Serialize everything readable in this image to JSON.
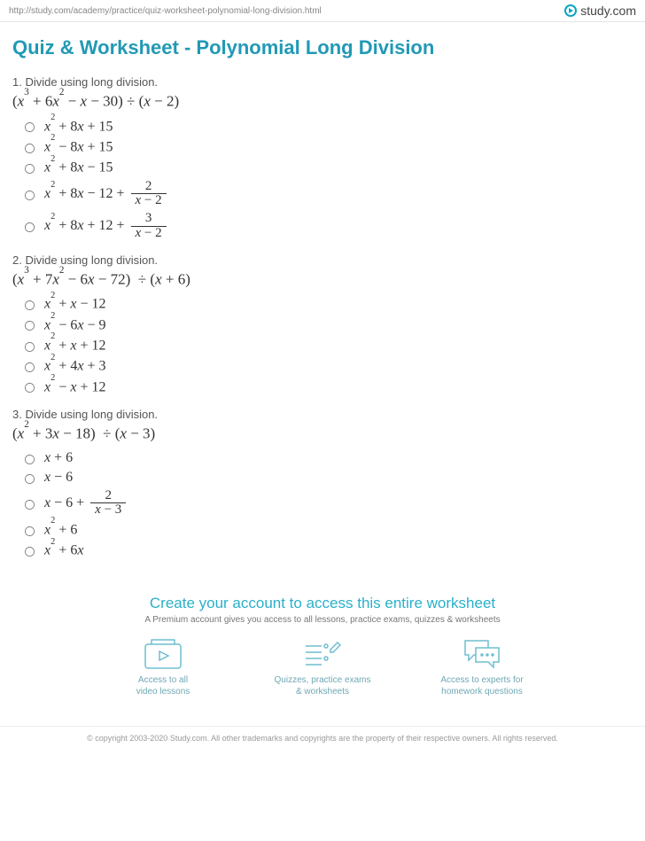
{
  "header": {
    "url": "http://study.com/academy/practice/quiz-worksheet-polynomial-long-division.html",
    "brand": "study.com"
  },
  "page": {
    "title": "Quiz & Worksheet - Polynomial Long Division"
  },
  "questions": [
    {
      "num": "1.",
      "prompt": "Divide using long division.",
      "expression_html": "(<span class='var'>x</span><sup>3</sup> + 6<span class='var'>x</span><sup>2</sup> − <span class='var'>x</span> − 30) ÷ (<span class='var'>x</span> − 2)",
      "options": [
        "<span class='var'>x</span><sup>2</sup> + 8<span class='var'>x</span> + 15",
        "<span class='var'>x</span><sup>2</sup> − 8<span class='var'>x</span> + 15",
        "<span class='var'>x</span><sup>2</sup> + 8<span class='var'>x</span> − 15",
        "<span class='var'>x</span><sup>2</sup> + 8<span class='var'>x</span> − 12 + <span class='frac'><span class='num'>2</span><span class='den'><span class='var'>x</span> − 2</span></span>",
        "<span class='var'>x</span><sup>2</sup> + 8<span class='var'>x</span> + 12 + <span class='frac'><span class='num'>3</span><span class='den'><span class='var'>x</span> − 2</span></span>"
      ]
    },
    {
      "num": "2.",
      "prompt": "Divide using long division.",
      "expression_html": "(<span class='var'>x</span><sup>3</sup> + 7<span class='var'>x</span><sup>2</sup> − 6<span class='var'>x</span> − 72)&nbsp; ÷ (<span class='var'>x</span> + 6)",
      "options": [
        "<span class='var'>x</span><sup>2</sup> + <span class='var'>x</span> − 12",
        "<span class='var'>x</span><sup>2</sup> − 6<span class='var'>x</span> − 9",
        "<span class='var'>x</span><sup>2</sup> + <span class='var'>x</span> + 12",
        "<span class='var'>x</span><sup>2</sup> + 4<span class='var'>x</span> + 3",
        "<span class='var'>x</span><sup>2</sup> − <span class='var'>x</span> + 12"
      ]
    },
    {
      "num": "3.",
      "prompt": "Divide using long division.",
      "expression_html": "(<span class='var'>x</span><sup>2</sup> + 3<span class='var'>x</span> − 18)&nbsp; ÷ (<span class='var'>x</span> − 3)",
      "options": [
        "<span class='var'>x</span> + 6",
        "<span class='var'>x</span> − 6",
        "<span class='var'>x</span> − 6 + <span class='frac'><span class='num'>2</span><span class='den'><span class='var'>x</span> − 3</span></span>",
        "<span class='var'>x</span><sup>2</sup> + 6",
        "<span class='var'>x</span><sup>2</sup> + 6<span class='var'>x</span>"
      ]
    }
  ],
  "promo": {
    "title": "Create your account to access this entire worksheet",
    "subtitle": "A Premium account gives you access to all lessons, practice exams, quizzes & worksheets",
    "items": [
      {
        "icon": "video",
        "caption_l1": "Access to all",
        "caption_l2": "video lessons"
      },
      {
        "icon": "quiz",
        "caption_l1": "Quizzes, practice exams",
        "caption_l2": "& worksheets"
      },
      {
        "icon": "chat",
        "caption_l1": "Access to experts for",
        "caption_l2": "homework questions"
      }
    ]
  },
  "footer": {
    "text": "© copyright 2003-2020 Study.com. All other trademarks and copyrights are the property of their respective owners. All rights reserved."
  },
  "style": {
    "accent": "#2199b5",
    "accent_light": "#2ab0c9",
    "text": "#333333",
    "muted": "#888888"
  }
}
